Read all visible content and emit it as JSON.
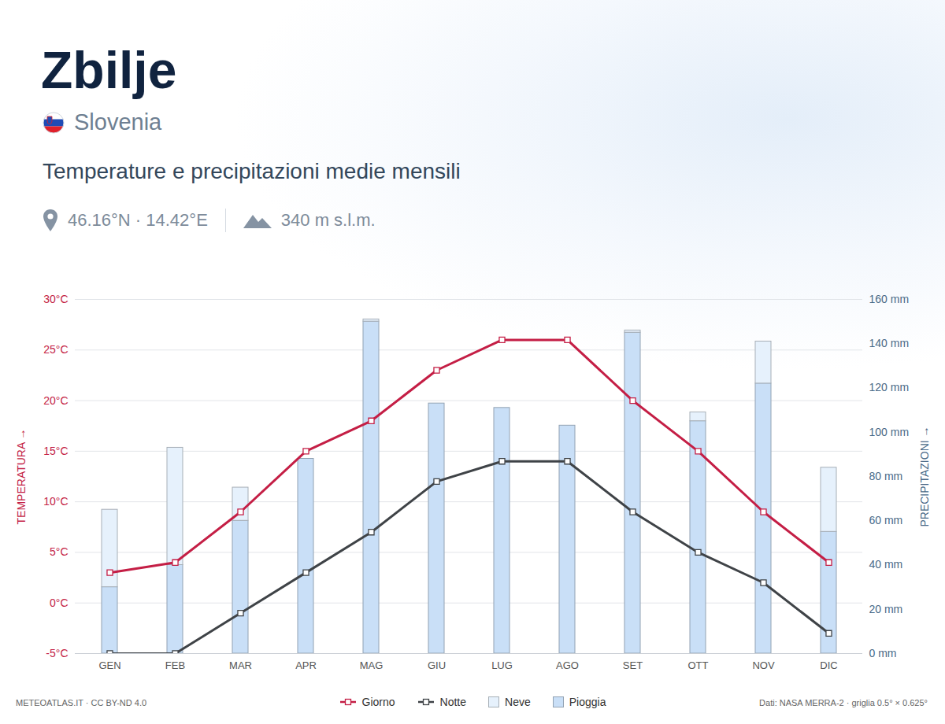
{
  "chart_data": {
    "type": "combo",
    "title": "Zbilje",
    "subtitle": "Slovenia",
    "heading": "Temperature e precipitazioni medie mensili",
    "coordinates": "46.16°N · 14.42°E",
    "elevation": "340 m s.l.m.",
    "credit": "METEOATLAS.IT · CC BY-ND 4.0",
    "source": "Dati: NASA MERRA-2 · griglia 0.5° × 0.625°",
    "ylabel": "TEMPERATURA",
    "y2label": "PRECIPITAZIONI",
    "categories": [
      "GEN",
      "FEB",
      "MAR",
      "APR",
      "MAG",
      "GIU",
      "LUG",
      "AGO",
      "SET",
      "OTT",
      "NOV",
      "DIC"
    ],
    "series": [
      {
        "name": "Giorno",
        "type": "line",
        "axis": "y",
        "color": "#c41e45",
        "marker": "square",
        "values": [
          3,
          4,
          9,
          15,
          18,
          23,
          26,
          26,
          20,
          15,
          9,
          4
        ]
      },
      {
        "name": "Notte",
        "type": "line",
        "axis": "y",
        "color": "#3f4347",
        "marker": "square",
        "values": [
          -5,
          -5,
          -1,
          3,
          7,
          12,
          14,
          14,
          9,
          5,
          2,
          -3
        ]
      },
      {
        "name": "Neve",
        "type": "bar",
        "axis": "y2",
        "color": "#e6f1fc",
        "values": [
          35,
          53,
          15,
          0,
          1,
          0,
          0,
          0,
          1,
          4,
          19,
          29
        ]
      },
      {
        "name": "Pioggia",
        "type": "bar",
        "axis": "y2",
        "color": "#c9dff7",
        "values": [
          30,
          40,
          60,
          88,
          150,
          113,
          111,
          103,
          145,
          105,
          122,
          55
        ]
      }
    ],
    "stacked": true,
    "ylim": [
      -5,
      30
    ],
    "yticks": [
      {
        "value": -5,
        "label": "-5°C"
      },
      {
        "value": 0,
        "label": "0°C"
      },
      {
        "value": 5,
        "label": "5°C"
      },
      {
        "value": 10,
        "label": "10°C"
      },
      {
        "value": 15,
        "label": "15°C"
      },
      {
        "value": 20,
        "label": "20°C"
      },
      {
        "value": 25,
        "label": "25°C"
      },
      {
        "value": 30,
        "label": "30°C"
      }
    ],
    "y2lim": [
      0,
      160
    ],
    "y2ticks": [
      {
        "value": 0,
        "label": "0 mm"
      },
      {
        "value": 20,
        "label": "20 mm"
      },
      {
        "value": 40,
        "label": "40 mm"
      },
      {
        "value": 60,
        "label": "60 mm"
      },
      {
        "value": 80,
        "label": "80 mm"
      },
      {
        "value": 100,
        "label": "100 mm"
      },
      {
        "value": 120,
        "label": "120 mm"
      },
      {
        "value": 140,
        "label": "140 mm"
      },
      {
        "value": 160,
        "label": "160 mm"
      }
    ],
    "grid": true,
    "legend": "bottom"
  }
}
